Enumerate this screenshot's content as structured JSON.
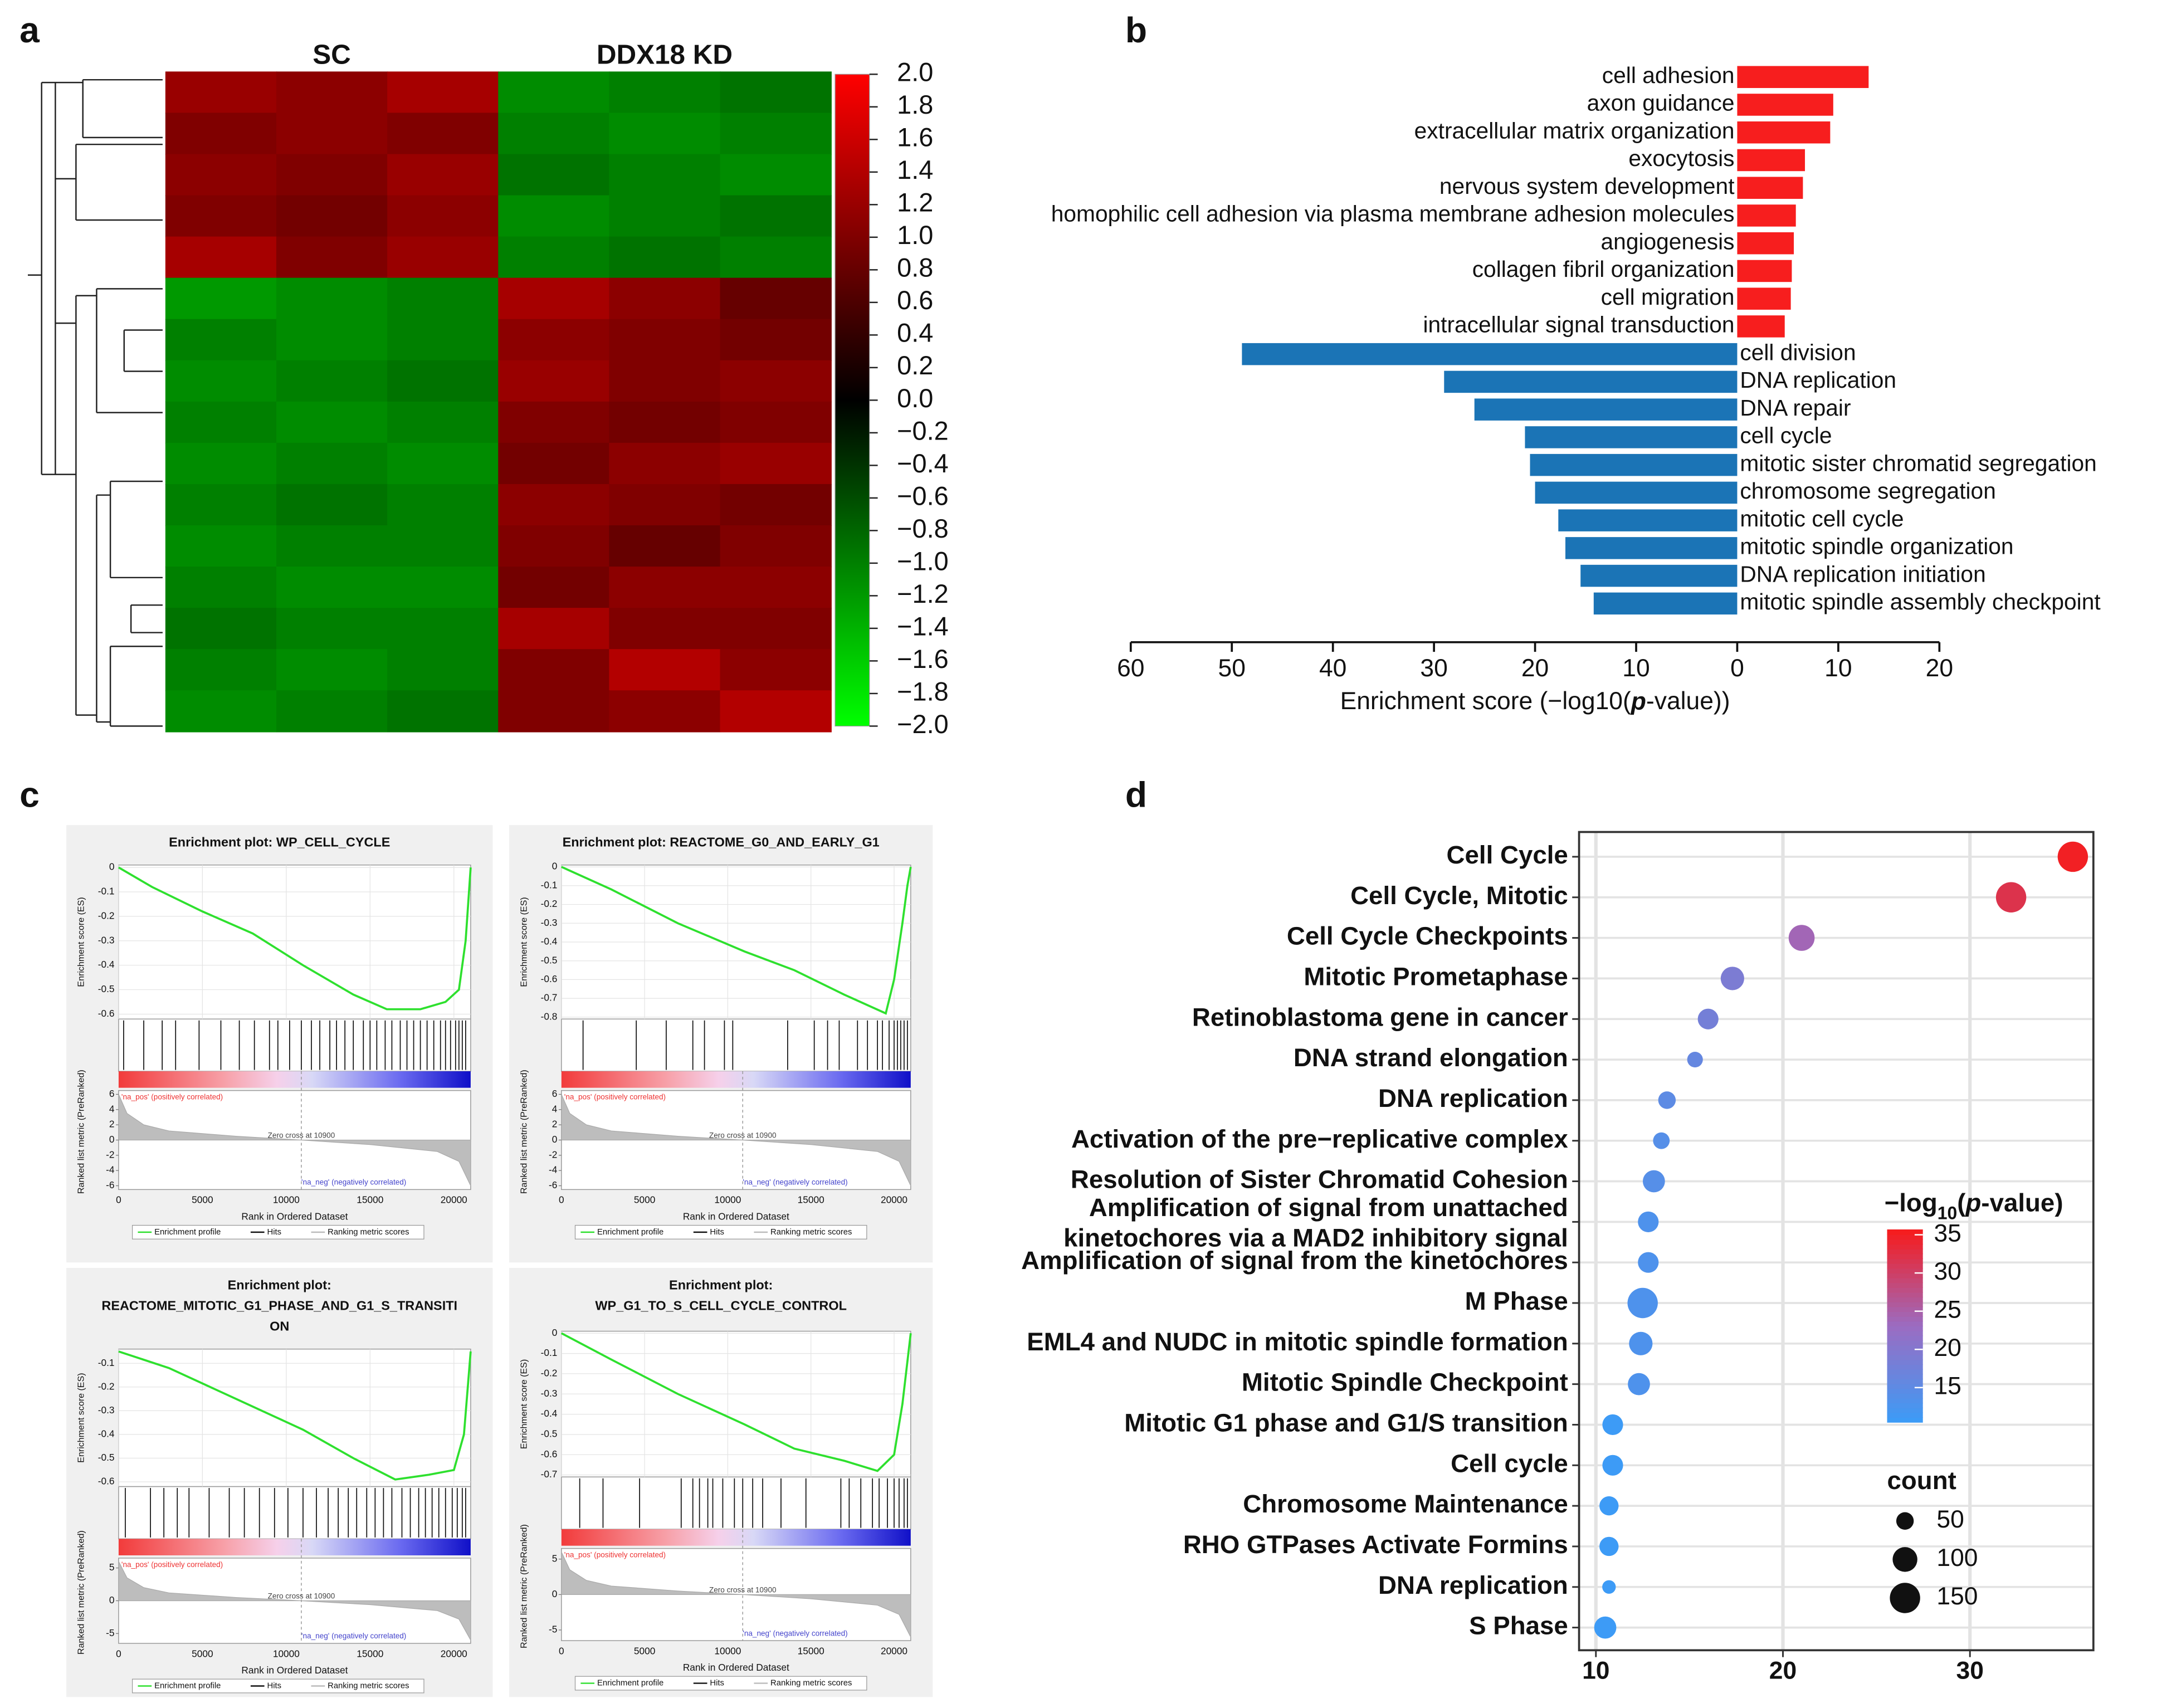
{
  "panel_labels": [
    "a",
    "b",
    "c",
    "d"
  ],
  "chart_data": [
    {
      "type": "heatmap",
      "column_groups": [
        "SC",
        "DDX18 KD"
      ],
      "values": [
        [
          1.2,
          1.1,
          1.3,
          -1.1,
          -1.0,
          -0.9
        ],
        [
          1.0,
          1.1,
          1.0,
          -1.0,
          -1.1,
          -1.0
        ],
        [
          1.1,
          1.0,
          1.2,
          -0.9,
          -1.0,
          -1.1
        ],
        [
          1.0,
          0.9,
          1.1,
          -1.1,
          -1.0,
          -0.9
        ],
        [
          1.3,
          1.0,
          1.2,
          -1.0,
          -0.9,
          -1.0
        ],
        [
          -1.2,
          -1.1,
          -1.0,
          1.3,
          1.1,
          0.8
        ],
        [
          -1.0,
          -1.1,
          -1.0,
          1.1,
          1.0,
          0.9
        ],
        [
          -1.1,
          -1.0,
          -0.9,
          1.2,
          1.0,
          1.1
        ],
        [
          -1.0,
          -1.1,
          -1.0,
          1.0,
          0.9,
          1.0
        ],
        [
          -1.1,
          -1.0,
          -1.1,
          0.9,
          1.1,
          1.2
        ],
        [
          -1.0,
          -0.9,
          -1.0,
          1.1,
          1.0,
          0.9
        ],
        [
          -1.1,
          -1.0,
          -1.0,
          1.0,
          0.8,
          1.0
        ],
        [
          -1.0,
          -1.1,
          -1.1,
          0.9,
          1.1,
          1.1
        ],
        [
          -0.9,
          -1.0,
          -1.0,
          1.3,
          1.0,
          1.0
        ],
        [
          -1.0,
          -1.1,
          -1.0,
          1.0,
          1.4,
          1.1
        ],
        [
          -1.1,
          -1.0,
          -0.9,
          1.0,
          1.1,
          1.4
        ]
      ],
      "clim": [
        -2,
        2
      ],
      "cticks": [
        {
          "value": 2,
          "label": "2.0"
        },
        1.8,
        1.6,
        1.4,
        1.2,
        {
          "value": 1,
          "label": "1.0"
        },
        0.8,
        0.6,
        0.4,
        0.2,
        {
          "value": 0,
          "label": "0.0"
        },
        {
          "value": -0.2,
          "label": "−0.2"
        },
        {
          "value": -0.4,
          "label": "−0.4"
        },
        {
          "value": -0.6,
          "label": "−0.6"
        },
        {
          "value": -0.8,
          "label": "−0.8"
        },
        {
          "value": -1,
          "label": "−1.0"
        },
        {
          "value": -1.2,
          "label": "−1.2"
        },
        {
          "value": -1.4,
          "label": "−1.4"
        },
        {
          "value": -1.6,
          "label": "−1.6"
        },
        {
          "value": -1.8,
          "label": "−1.8"
        },
        {
          "value": -2,
          "label": "−2.0"
        }
      ]
    },
    {
      "type": "barh",
      "categories": [
        "cell adhesion",
        "axon guidance",
        "extracellular matrix organization",
        "exocytosis",
        "nervous system development",
        "homophilic cell adhesion via plasma membrane adhesion molecules",
        "angiogenesis",
        "collagen fibril organization",
        "cell migration",
        "intracellular signal transduction",
        "cell division",
        "DNA replication",
        "DNA repair",
        "cell cycle",
        "mitotic sister chromatid segregation",
        "chromosome segregation",
        "mitotic cell cycle",
        "mitotic spindle organization",
        "DNA replication initiation",
        "mitotic spindle assembly checkpoint"
      ],
      "values": [
        13,
        9.5,
        9.2,
        6.7,
        6.5,
        5.8,
        5.6,
        5.4,
        5.3,
        4.7,
        -49,
        -29,
        -26,
        -21,
        -20.5,
        -20,
        -17.7,
        -17,
        -15.5,
        -14.2
      ],
      "pos_color": "#f71e1e",
      "neg_color": "#1b74b6",
      "xlabel": "Enrichment score (−log10(p-value))",
      "xlim": [
        -60,
        20
      ],
      "xticks": [
        {
          "value": -60,
          "label": "60"
        },
        {
          "value": -50,
          "label": "50"
        },
        {
          "value": -40,
          "label": "40"
        },
        {
          "value": -30,
          "label": "30"
        },
        {
          "value": -20,
          "label": "20"
        },
        {
          "value": -10,
          "label": "10"
        },
        0,
        10,
        20
      ]
    },
    {
      "type": "gsea",
      "title": [
        "Enrichment plot: WP_CELL_CYCLE"
      ],
      "x": [
        0,
        2000,
        5000,
        8000,
        11000,
        14000,
        16000,
        18000,
        19500,
        20300,
        20700,
        21000
      ],
      "values": [
        0,
        -0.08,
        -0.18,
        -0.27,
        -0.4,
        -0.52,
        -0.58,
        -0.58,
        -0.55,
        -0.5,
        -0.3,
        0
      ],
      "hits": [
        300,
        1500,
        2600,
        3400,
        4800,
        6100,
        7200,
        8100,
        9000,
        9500,
        10200,
        10900,
        11500,
        12000,
        12600,
        13000,
        13500,
        14000,
        14600,
        15000,
        15400,
        15900,
        16300,
        16800,
        17200,
        17600,
        18000,
        18400,
        18800,
        19200,
        19500,
        19800,
        20100,
        20300,
        20500,
        20700
      ],
      "metric_x": [
        0,
        500,
        1500,
        3000,
        7000,
        10900,
        15000,
        19000,
        20300,
        21000
      ],
      "metric": [
        6,
        3.5,
        2,
        1.2,
        0.5,
        0,
        -0.6,
        -1.5,
        -2.8,
        -6
      ],
      "xlim": [
        0,
        21000
      ],
      "xticks": [
        0,
        5000,
        10000,
        15000,
        20000
      ],
      "ylim": [
        -0.62,
        0.01
      ],
      "yticks": [
        0,
        -0.1,
        -0.2,
        -0.3,
        -0.4,
        -0.5,
        -0.6
      ],
      "metric_ylim": [
        -6.5,
        6.5
      ],
      "metric_yticks": [
        6,
        4,
        2,
        0,
        -2,
        -4,
        -6
      ],
      "xlabel": "Rank in Ordered Dataset",
      "ylabel": "Enrichment score (ES)",
      "metric_ylabel": "Ranked list metric (PreRanked)",
      "annotations": [
        "'na_pos' (positively correlated)",
        "Zero cross at 10900",
        "'na_neg' (negatively correlated)"
      ],
      "zero_cross": 10900,
      "legend": [
        "Enrichment profile",
        "Hits",
        "Ranking metric scores"
      ],
      "color": "#2ee02e"
    },
    {
      "type": "gsea",
      "title": [
        "Enrichment plot: REACTOME_G0_AND_EARLY_G1"
      ],
      "x": [
        0,
        3000,
        7000,
        11000,
        14000,
        17000,
        19500,
        20000,
        20500,
        20800,
        21000
      ],
      "values": [
        0,
        -0.12,
        -0.3,
        -0.45,
        -0.55,
        -0.68,
        -0.78,
        -0.6,
        -0.3,
        -0.1,
        0
      ],
      "hits": [
        1300,
        4500,
        6300,
        7900,
        8600,
        9800,
        10300,
        13600,
        15200,
        16000,
        16700,
        17800,
        18400,
        19000,
        19300,
        19700,
        20000,
        20200,
        20400,
        20600,
        20800
      ],
      "metric_x": [
        0,
        500,
        1500,
        3000,
        7000,
        10900,
        15000,
        19000,
        20300,
        21000
      ],
      "metric": [
        6,
        3.5,
        2,
        1.2,
        0.5,
        0,
        -0.6,
        -1.5,
        -2.8,
        -6
      ],
      "xlim": [
        0,
        21000
      ],
      "xticks": [
        0,
        5000,
        10000,
        15000,
        20000
      ],
      "ylim": [
        -0.81,
        0.01
      ],
      "yticks": [
        0,
        -0.1,
        -0.2,
        -0.3,
        -0.4,
        -0.5,
        -0.6,
        -0.7,
        -0.8
      ],
      "metric_ylim": [
        -6.5,
        6.5
      ],
      "metric_yticks": [
        6,
        4,
        2,
        0,
        -2,
        -4,
        -6
      ],
      "xlabel": "Rank in Ordered Dataset",
      "ylabel": "Enrichment score (ES)",
      "metric_ylabel": "Ranked list metric (PreRanked)",
      "annotations": [
        "'na_pos' (positively correlated)",
        "Zero cross at 10900",
        "'na_neg' (negatively correlated)"
      ],
      "zero_cross": 10900,
      "legend": [
        "Enrichment profile",
        "Hits",
        "Ranking metric scores"
      ],
      "color": "#2ee02e"
    },
    {
      "type": "gsea",
      "title": [
        "Enrichment plot:",
        "REACTOME_MITOTIC_G1_PHASE_AND_G1_S_TRANSITI",
        "ON"
      ],
      "x": [
        0,
        3000,
        7000,
        11000,
        14000,
        16500,
        18500,
        20000,
        20600,
        21000
      ],
      "values": [
        -0.05,
        -0.12,
        -0.25,
        -0.38,
        -0.5,
        -0.59,
        -0.57,
        -0.55,
        -0.4,
        -0.05
      ],
      "hits": [
        400,
        1900,
        2700,
        3500,
        4200,
        5400,
        6600,
        7500,
        8400,
        9300,
        10100,
        11000,
        11800,
        12500,
        13100,
        13700,
        14200,
        14800,
        15300,
        15800,
        16300,
        16900,
        17400,
        17900,
        18300,
        18700,
        19100,
        19500,
        19900,
        20200,
        20500,
        20700
      ],
      "metric_x": [
        0,
        500,
        1500,
        3000,
        7000,
        10900,
        15000,
        19000,
        20300,
        21000
      ],
      "metric": [
        6,
        3.5,
        2,
        1.2,
        0.5,
        0,
        -0.6,
        -1.5,
        -2.8,
        -6
      ],
      "xlim": [
        0,
        21000
      ],
      "xticks": [
        0,
        5000,
        10000,
        15000,
        20000
      ],
      "ylim": [
        -0.62,
        -0.04
      ],
      "yticks": [
        -0.1,
        -0.2,
        -0.3,
        -0.4,
        -0.5,
        -0.6
      ],
      "metric_ylim": [
        -6.5,
        6.5
      ],
      "metric_yticks": [
        5,
        0,
        -5
      ],
      "xlabel": "Rank in Ordered Dataset",
      "ylabel": "Enrichment score (ES)",
      "metric_ylabel": "Ranked list metric (PreRanked)",
      "annotations": [
        "'na_pos' (positively correlated)",
        "Zero cross at 10900",
        "'na_neg' (negatively correlated)"
      ],
      "zero_cross": 10900,
      "legend": [
        "Enrichment profile",
        "Hits",
        "Ranking metric scores"
      ],
      "color": "#2ee02e"
    },
    {
      "type": "gsea",
      "title": [
        "Enrichment plot:",
        "WP_G1_TO_S_CELL_CYCLE_CONTROL"
      ],
      "x": [
        0,
        3000,
        7000,
        11000,
        14000,
        17000,
        19000,
        20000,
        20500,
        21000
      ],
      "values": [
        0,
        -0.13,
        -0.3,
        -0.45,
        -0.57,
        -0.63,
        -0.68,
        -0.6,
        -0.35,
        0
      ],
      "hits": [
        1100,
        2500,
        4700,
        7200,
        7900,
        8300,
        8800,
        9100,
        9700,
        10400,
        10900,
        11500,
        12100,
        13200,
        14700,
        16800,
        17300,
        18000,
        18700,
        19100,
        19600,
        20000,
        20300,
        20600,
        20800
      ],
      "metric_x": [
        0,
        500,
        1500,
        3000,
        7000,
        10900,
        15000,
        19000,
        20300,
        21000
      ],
      "metric": [
        6,
        3.5,
        2,
        1.2,
        0.5,
        0,
        -0.6,
        -1.5,
        -2.8,
        -6
      ],
      "xlim": [
        0,
        21000
      ],
      "xticks": [
        0,
        5000,
        10000,
        15000,
        20000
      ],
      "ylim": [
        -0.71,
        0.01
      ],
      "yticks": [
        0,
        -0.1,
        -0.2,
        -0.3,
        -0.4,
        -0.5,
        -0.6,
        -0.7
      ],
      "metric_ylim": [
        -6.5,
        6.5
      ],
      "metric_yticks": [
        5,
        0,
        -5
      ],
      "xlabel": "Rank in Ordered Dataset",
      "ylabel": "Enrichment score (ES)",
      "metric_ylabel": "Ranked list metric (PreRanked)",
      "annotations": [
        "'na_pos' (positively correlated)",
        "Zero cross at 10900",
        "'na_neg' (negatively correlated)"
      ],
      "zero_cross": 10900,
      "legend": [
        "Enrichment profile",
        "Hits",
        "Ranking metric scores"
      ],
      "color": "#2ee02e"
    },
    {
      "type": "bubble",
      "categories": [
        "Cell Cycle",
        "Cell Cycle, Mitotic",
        "Cell Cycle Checkpoints",
        "Mitotic Prometaphase",
        "Retinoblastoma gene in cancer",
        "DNA strand elongation",
        "DNA replication",
        "Activation of the pre−replicative complex",
        "Resolution of Sister Chromatid Cohesion",
        "Amplification  of signal from unattached\nkinetochores via a MAD2  inhibitory signal",
        "Amplification of signal from the kinetochores",
        "M Phase",
        "EML4 and NUDC in mitotic spindle formation",
        "Mitotic Spindle Checkpoint",
        "Mitotic G1 phase and G1/S transition",
        "Cell cycle",
        "Chromosome Maintenance",
        "RHO GTPases Activate Formins",
        "DNA replication",
        "S Phase"
      ],
      "x": [
        35.5,
        32.2,
        21,
        17.3,
        16,
        15.3,
        13.8,
        13.5,
        13.1,
        12.8,
        12.8,
        12.5,
        12.4,
        12.3,
        10.9,
        10.9,
        10.7,
        10.7,
        10.7,
        10.5
      ],
      "color_values": [
        35,
        32,
        24,
        19,
        18,
        16,
        15,
        14,
        14,
        13,
        13,
        13,
        13,
        13,
        10.8,
        10.8,
        10.8,
        10.8,
        10.8,
        10.8
      ],
      "sizes": [
        150,
        150,
        110,
        90,
        70,
        40,
        50,
        45,
        80,
        70,
        70,
        150,
        90,
        80,
        70,
        70,
        60,
        60,
        30,
        80
      ],
      "xlim": [
        9.1,
        36.6
      ],
      "xticks": [
        10,
        20,
        30
      ],
      "clim": [
        10.5,
        35.7
      ],
      "cticks": [
        35,
        30,
        25,
        20,
        15
      ],
      "color_title": "−log10(p-value)",
      "size_title": "count",
      "size_ticks": [
        50,
        100,
        150
      ],
      "colors": [
        "#3b9cf7",
        "#9b6cc2",
        "#f71b1b"
      ]
    }
  ]
}
